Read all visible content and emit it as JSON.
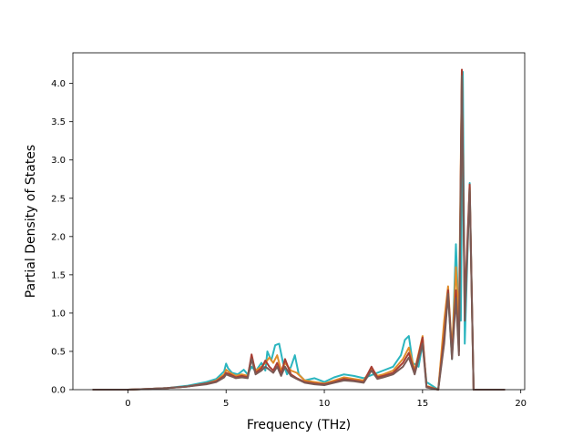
{
  "chart_data": {
    "type": "line",
    "title": "",
    "xlabel": "Frequency (THz)",
    "ylabel": "Partial Density of States",
    "xlim": [
      -2.8,
      20.2
    ],
    "ylim": [
      0.0,
      4.4
    ],
    "x_ticks": [
      0,
      5,
      10,
      15,
      20
    ],
    "x_tick_labels": [
      "0",
      "5",
      "10",
      "15",
      "20"
    ],
    "y_ticks": [
      0.0,
      0.5,
      1.0,
      1.5,
      2.0,
      2.5,
      3.0,
      3.5,
      4.0
    ],
    "y_tick_labels": [
      "0.0",
      "0.5",
      "1.0",
      "1.5",
      "2.0",
      "2.5",
      "3.0",
      "3.5",
      "4.0"
    ],
    "grid": false,
    "legend": "none",
    "series": [
      {
        "color": "#2bb5bf",
        "points": [
          [
            -1.8,
            0.0
          ],
          [
            0.0,
            0.0
          ],
          [
            1.0,
            0.01
          ],
          [
            2.0,
            0.02
          ],
          [
            3.0,
            0.05
          ],
          [
            4.0,
            0.1
          ],
          [
            4.5,
            0.14
          ],
          [
            4.9,
            0.24
          ],
          [
            5.0,
            0.34
          ],
          [
            5.1,
            0.28
          ],
          [
            5.3,
            0.22
          ],
          [
            5.6,
            0.2
          ],
          [
            5.9,
            0.26
          ],
          [
            6.1,
            0.2
          ],
          [
            6.3,
            0.3
          ],
          [
            6.5,
            0.24
          ],
          [
            6.8,
            0.35
          ],
          [
            7.0,
            0.25
          ],
          [
            7.1,
            0.5
          ],
          [
            7.3,
            0.38
          ],
          [
            7.5,
            0.58
          ],
          [
            7.7,
            0.6
          ],
          [
            7.9,
            0.35
          ],
          [
            8.1,
            0.2
          ],
          [
            8.3,
            0.3
          ],
          [
            8.5,
            0.45
          ],
          [
            8.7,
            0.2
          ],
          [
            9.0,
            0.12
          ],
          [
            9.5,
            0.15
          ],
          [
            10.0,
            0.1
          ],
          [
            10.5,
            0.16
          ],
          [
            11.0,
            0.2
          ],
          [
            11.5,
            0.18
          ],
          [
            12.0,
            0.15
          ],
          [
            12.5,
            0.2
          ],
          [
            13.0,
            0.25
          ],
          [
            13.5,
            0.3
          ],
          [
            13.9,
            0.45
          ],
          [
            14.1,
            0.65
          ],
          [
            14.3,
            0.7
          ],
          [
            14.5,
            0.35
          ],
          [
            14.8,
            0.3
          ],
          [
            15.0,
            0.6
          ],
          [
            15.2,
            0.1
          ],
          [
            15.8,
            0.0
          ],
          [
            16.1,
            0.8
          ],
          [
            16.3,
            1.25
          ],
          [
            16.5,
            0.4
          ],
          [
            16.7,
            1.9
          ],
          [
            16.8,
            1.2
          ],
          [
            16.95,
            0.9
          ],
          [
            17.05,
            4.15
          ],
          [
            17.15,
            0.6
          ],
          [
            17.4,
            2.7
          ],
          [
            17.6,
            0.0
          ],
          [
            19.2,
            0.0
          ]
        ]
      },
      {
        "color": "#e08d2b",
        "points": [
          [
            -1.8,
            0.0
          ],
          [
            0.0,
            0.0
          ],
          [
            1.0,
            0.01
          ],
          [
            2.0,
            0.02
          ],
          [
            3.0,
            0.04
          ],
          [
            4.0,
            0.08
          ],
          [
            4.5,
            0.12
          ],
          [
            4.9,
            0.2
          ],
          [
            5.0,
            0.26
          ],
          [
            5.2,
            0.22
          ],
          [
            5.5,
            0.18
          ],
          [
            5.8,
            0.2
          ],
          [
            6.1,
            0.18
          ],
          [
            6.3,
            0.42
          ],
          [
            6.5,
            0.25
          ],
          [
            6.8,
            0.3
          ],
          [
            7.0,
            0.35
          ],
          [
            7.2,
            0.42
          ],
          [
            7.4,
            0.35
          ],
          [
            7.6,
            0.45
          ],
          [
            7.8,
            0.25
          ],
          [
            8.0,
            0.35
          ],
          [
            8.3,
            0.25
          ],
          [
            8.6,
            0.22
          ],
          [
            9.0,
            0.12
          ],
          [
            9.5,
            0.1
          ],
          [
            10.0,
            0.08
          ],
          [
            10.5,
            0.12
          ],
          [
            11.0,
            0.16
          ],
          [
            11.5,
            0.14
          ],
          [
            12.0,
            0.12
          ],
          [
            12.4,
            0.28
          ],
          [
            12.7,
            0.18
          ],
          [
            13.0,
            0.2
          ],
          [
            13.5,
            0.25
          ],
          [
            14.0,
            0.4
          ],
          [
            14.3,
            0.55
          ],
          [
            14.6,
            0.25
          ],
          [
            15.0,
            0.7
          ],
          [
            15.2,
            0.05
          ],
          [
            15.8,
            0.0
          ],
          [
            16.1,
            0.9
          ],
          [
            16.3,
            1.35
          ],
          [
            16.5,
            0.5
          ],
          [
            16.7,
            1.6
          ],
          [
            16.85,
            0.9
          ],
          [
            17.0,
            4.17
          ],
          [
            17.15,
            1.0
          ],
          [
            17.4,
            2.65
          ],
          [
            17.6,
            0.0
          ],
          [
            19.2,
            0.0
          ]
        ]
      },
      {
        "color": "#a83e33",
        "points": [
          [
            -1.8,
            0.0
          ],
          [
            0.0,
            0.0
          ],
          [
            1.0,
            0.01
          ],
          [
            2.0,
            0.02
          ],
          [
            3.0,
            0.04
          ],
          [
            4.0,
            0.08
          ],
          [
            4.5,
            0.11
          ],
          [
            4.9,
            0.18
          ],
          [
            5.0,
            0.22
          ],
          [
            5.2,
            0.2
          ],
          [
            5.5,
            0.16
          ],
          [
            5.8,
            0.18
          ],
          [
            6.1,
            0.16
          ],
          [
            6.3,
            0.46
          ],
          [
            6.5,
            0.22
          ],
          [
            6.8,
            0.28
          ],
          [
            7.0,
            0.38
          ],
          [
            7.2,
            0.3
          ],
          [
            7.4,
            0.25
          ],
          [
            7.6,
            0.35
          ],
          [
            7.8,
            0.2
          ],
          [
            8.0,
            0.4
          ],
          [
            8.3,
            0.2
          ],
          [
            8.6,
            0.15
          ],
          [
            9.0,
            0.1
          ],
          [
            9.5,
            0.08
          ],
          [
            10.0,
            0.07
          ],
          [
            10.5,
            0.1
          ],
          [
            11.0,
            0.14
          ],
          [
            11.5,
            0.12
          ],
          [
            12.0,
            0.1
          ],
          [
            12.4,
            0.3
          ],
          [
            12.7,
            0.16
          ],
          [
            13.0,
            0.18
          ],
          [
            13.5,
            0.22
          ],
          [
            14.0,
            0.35
          ],
          [
            14.3,
            0.48
          ],
          [
            14.6,
            0.22
          ],
          [
            15.0,
            0.68
          ],
          [
            15.2,
            0.04
          ],
          [
            15.8,
            0.0
          ],
          [
            16.1,
            0.7
          ],
          [
            16.3,
            1.3
          ],
          [
            16.5,
            0.45
          ],
          [
            16.7,
            1.3
          ],
          [
            16.85,
            0.5
          ],
          [
            17.0,
            4.18
          ],
          [
            17.15,
            1.1
          ],
          [
            17.4,
            2.68
          ],
          [
            17.6,
            0.0
          ],
          [
            19.2,
            0.0
          ]
        ]
      },
      {
        "color": "#7a5a55",
        "points": [
          [
            -1.8,
            0.0
          ],
          [
            0.0,
            0.0
          ],
          [
            1.0,
            0.01
          ],
          [
            2.0,
            0.02
          ],
          [
            3.0,
            0.04
          ],
          [
            4.0,
            0.07
          ],
          [
            4.5,
            0.1
          ],
          [
            4.9,
            0.16
          ],
          [
            5.0,
            0.2
          ],
          [
            5.2,
            0.18
          ],
          [
            5.5,
            0.15
          ],
          [
            5.8,
            0.16
          ],
          [
            6.1,
            0.15
          ],
          [
            6.3,
            0.4
          ],
          [
            6.5,
            0.2
          ],
          [
            6.8,
            0.25
          ],
          [
            7.0,
            0.3
          ],
          [
            7.2,
            0.26
          ],
          [
            7.4,
            0.22
          ],
          [
            7.6,
            0.3
          ],
          [
            7.8,
            0.18
          ],
          [
            8.0,
            0.3
          ],
          [
            8.3,
            0.18
          ],
          [
            8.6,
            0.14
          ],
          [
            9.0,
            0.09
          ],
          [
            9.5,
            0.07
          ],
          [
            10.0,
            0.06
          ],
          [
            10.5,
            0.09
          ],
          [
            11.0,
            0.12
          ],
          [
            11.5,
            0.11
          ],
          [
            12.0,
            0.09
          ],
          [
            12.4,
            0.25
          ],
          [
            12.7,
            0.14
          ],
          [
            13.0,
            0.16
          ],
          [
            13.5,
            0.2
          ],
          [
            14.0,
            0.3
          ],
          [
            14.3,
            0.42
          ],
          [
            14.6,
            0.2
          ],
          [
            15.0,
            0.6
          ],
          [
            15.2,
            0.03
          ],
          [
            15.8,
            0.0
          ],
          [
            16.1,
            0.6
          ],
          [
            16.3,
            1.25
          ],
          [
            16.5,
            0.4
          ],
          [
            16.7,
            1.2
          ],
          [
            16.85,
            0.45
          ],
          [
            17.0,
            4.1
          ],
          [
            17.15,
            0.9
          ],
          [
            17.4,
            2.6
          ],
          [
            17.6,
            0.0
          ],
          [
            19.2,
            0.0
          ]
        ]
      }
    ]
  }
}
